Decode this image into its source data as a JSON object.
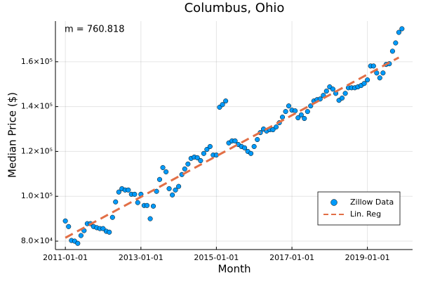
{
  "chart_data": {
    "type": "scatter",
    "title": "Columbus, Ohio",
    "x_label": "Month",
    "y_label": "Median Price ($)",
    "annotation": "m = 760.818",
    "xlim": [
      "2010-09-27",
      "2020-03-13"
    ],
    "xticks": [
      "2011-01-01",
      "2013-01-01",
      "2015-01-01",
      "2017-01-01",
      "2019-01-01"
    ],
    "ylim": [
      76250,
      178125
    ],
    "yticks": [
      {
        "value": 80000,
        "label": "8.0×10⁴"
      },
      {
        "value": 100000,
        "label": "1.0×10⁵"
      },
      {
        "value": 120000,
        "label": "1.2×10⁵"
      },
      {
        "value": 140000,
        "label": "1.4×10⁵"
      },
      {
        "value": 160000,
        "label": "1.6×10⁵"
      }
    ],
    "grid": true,
    "legend": "bottom-right",
    "series": [
      {
        "name": "Zillow Data",
        "mode": "markers",
        "color": "#009af9",
        "x": [
          "2011-01-01",
          "2011-02-01",
          "2011-03-01",
          "2011-04-01",
          "2011-05-01",
          "2011-06-01",
          "2011-07-01",
          "2011-08-01",
          "2011-09-01",
          "2011-10-01",
          "2011-11-01",
          "2011-12-01",
          "2012-01-01",
          "2012-02-01",
          "2012-03-01",
          "2012-04-01",
          "2012-05-01",
          "2012-06-01",
          "2012-07-01",
          "2012-08-01",
          "2012-09-01",
          "2012-10-01",
          "2012-11-01",
          "2012-12-01",
          "2013-01-01",
          "2013-02-01",
          "2013-03-01",
          "2013-04-01",
          "2013-05-01",
          "2013-06-01",
          "2013-07-01",
          "2013-08-01",
          "2013-09-01",
          "2013-10-01",
          "2013-11-01",
          "2013-12-01",
          "2014-01-01",
          "2014-02-01",
          "2014-03-01",
          "2014-04-01",
          "2014-05-01",
          "2014-06-01",
          "2014-07-01",
          "2014-08-01",
          "2014-09-01",
          "2014-10-01",
          "2014-11-01",
          "2014-12-01",
          "2015-01-01",
          "2015-02-01",
          "2015-03-01",
          "2015-04-01",
          "2015-05-01",
          "2015-06-01",
          "2015-07-01",
          "2015-08-01",
          "2015-09-01",
          "2015-10-01",
          "2015-11-01",
          "2015-12-01",
          "2016-01-01",
          "2016-02-01",
          "2016-03-01",
          "2016-04-01",
          "2016-05-01",
          "2016-06-01",
          "2016-07-01",
          "2016-08-01",
          "2016-09-01",
          "2016-10-01",
          "2016-11-01",
          "2016-12-01",
          "2017-01-01",
          "2017-02-01",
          "2017-03-01",
          "2017-04-01",
          "2017-05-01",
          "2017-06-01",
          "2017-07-01",
          "2017-08-01",
          "2017-09-01",
          "2017-10-01",
          "2017-11-01",
          "2017-12-01",
          "2018-01-01",
          "2018-02-01",
          "2018-03-01",
          "2018-04-01",
          "2018-05-01",
          "2018-06-01",
          "2018-07-01",
          "2018-08-01",
          "2018-09-01",
          "2018-10-01",
          "2018-11-01",
          "2018-12-01",
          "2019-01-01",
          "2019-02-01",
          "2019-03-01",
          "2019-04-01",
          "2019-05-01",
          "2019-06-01",
          "2019-07-01",
          "2019-08-01",
          "2019-09-01",
          "2019-10-01",
          "2019-11-01",
          "2019-12-01"
        ],
        "values": [
          89000,
          86500,
          80300,
          80000,
          79000,
          82500,
          84700,
          87800,
          87800,
          86500,
          86000,
          85600,
          85600,
          84400,
          84000,
          90600,
          97500,
          101900,
          103400,
          102800,
          102800,
          100900,
          100900,
          97200,
          100900,
          95900,
          95900,
          90000,
          95600,
          102200,
          107500,
          112800,
          110900,
          103400,
          100600,
          102800,
          104400,
          109700,
          112200,
          114400,
          116900,
          117500,
          117200,
          115900,
          119100,
          120900,
          122200,
          118400,
          118400,
          139700,
          140900,
          142500,
          123800,
          124700,
          124700,
          123100,
          122200,
          121600,
          120000,
          119100,
          122200,
          125300,
          128400,
          130000,
          129100,
          129700,
          129700,
          130900,
          132800,
          135300,
          137800,
          140300,
          138400,
          138100,
          135000,
          136300,
          134700,
          137800,
          140300,
          142500,
          143100,
          143400,
          145000,
          146900,
          148800,
          147800,
          145900,
          142800,
          143800,
          145900,
          148400,
          148400,
          148400,
          148800,
          149400,
          150300,
          151900,
          158100,
          158100,
          155000,
          152800,
          155000,
          158800,
          159100,
          164700,
          168400,
          173100,
          174700
        ]
      },
      {
        "name": "Lin. Reg",
        "mode": "dashed",
        "color": "#e26f46",
        "x": [
          "2011-01-01",
          "2019-11-01"
        ],
        "values": [
          81500,
          161900
        ]
      }
    ]
  }
}
